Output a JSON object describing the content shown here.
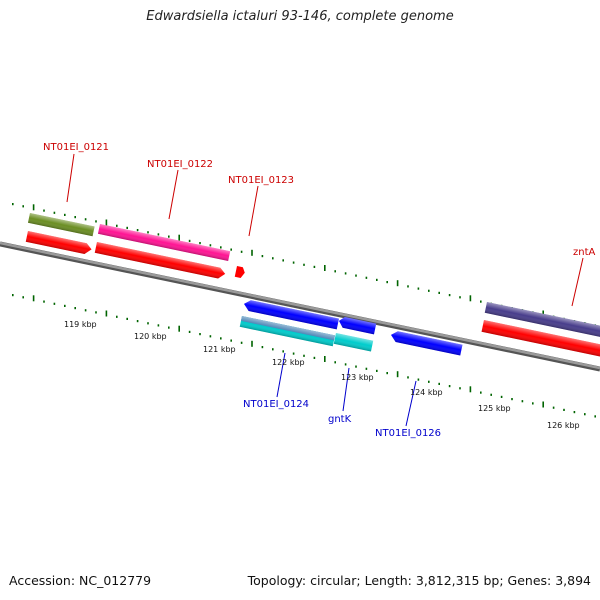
{
  "title": "Edwardsiella ictaluri 93-146, complete genome",
  "footer": {
    "accession": "Accession: NC_012779",
    "summary": "Topology: circular; Length: 3,812,315 bp; Genes: 3,894"
  },
  "axis": {
    "ticks": [
      "119 kbp",
      "120 kbp",
      "121 kbp",
      "122 kbp",
      "123 kbp",
      "124 kbp",
      "125 kbp",
      "126 kbp"
    ]
  },
  "genes": {
    "forward": [
      "NT01EI_0121",
      "NT01EI_0122",
      "NT01EI_0123",
      "zntA"
    ],
    "reverse": [
      "NT01EI_0124",
      "gntK",
      "NT01EI_0126"
    ]
  },
  "colors": {
    "forward_label": "#cc0000",
    "reverse_label": "#0000cc",
    "cds": "#ff0000",
    "gene_olive": "#6b8e23",
    "gene_magenta": "#ff1493",
    "gene_slate": "#483d8b",
    "gene_blue": "#0000ff",
    "gene_cyan": "#00cccc",
    "gene_steel": "#4682b4",
    "axis_line": "#808080",
    "tick": "#006400"
  }
}
